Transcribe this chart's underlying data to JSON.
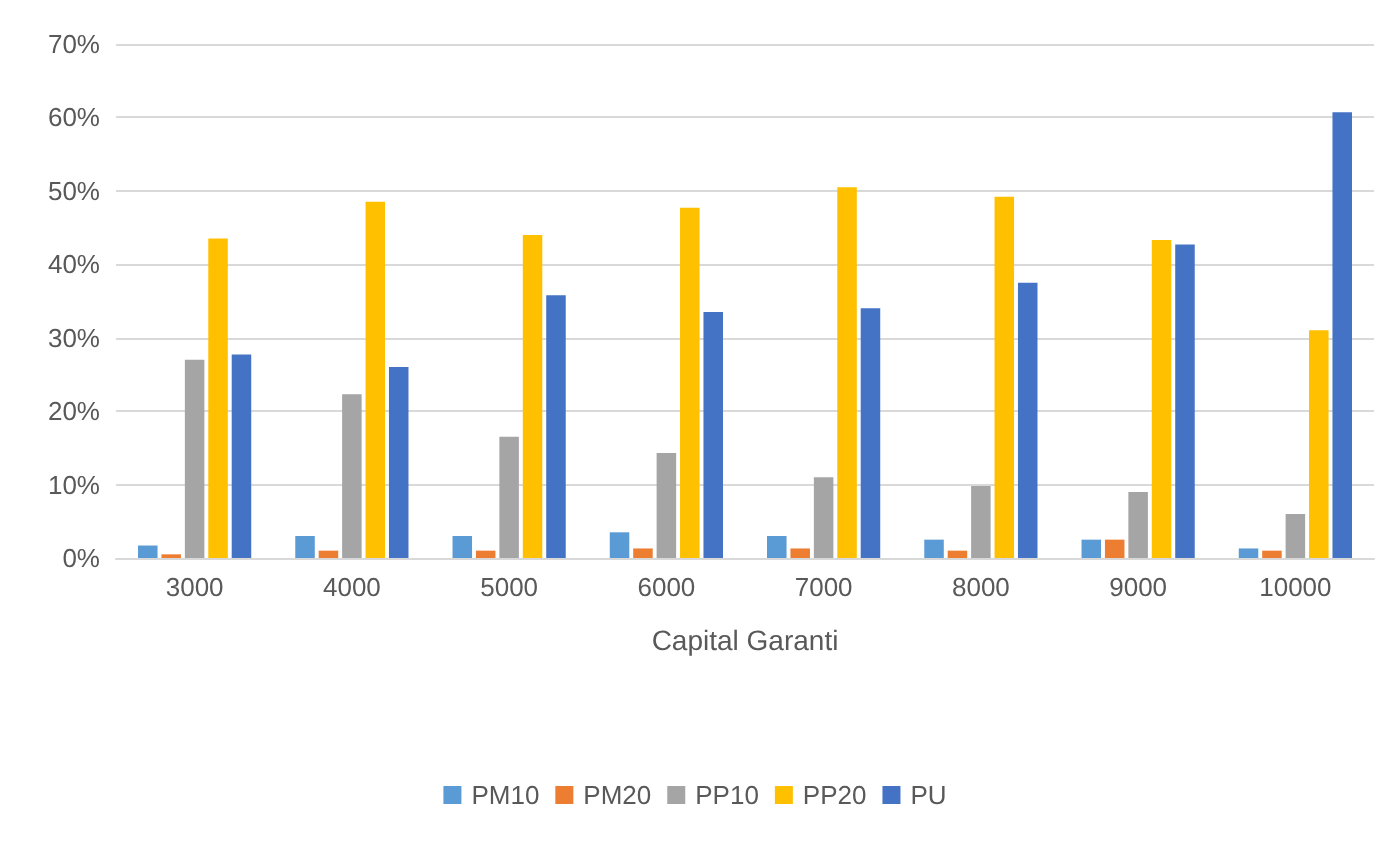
{
  "chart_data": {
    "type": "bar",
    "xlabel": "Capital Garanti",
    "categories": [
      "3000",
      "4000",
      "5000",
      "6000",
      "7000",
      "8000",
      "9000",
      "10000"
    ],
    "series": [
      {
        "name": "PM10",
        "color": "#5b9bd5",
        "values": [
          1.7,
          3,
          3,
          3.5,
          3,
          2.5,
          2.5,
          1.3
        ]
      },
      {
        "name": "PM20",
        "color": "#ed7d31",
        "values": [
          0.5,
          1,
          1,
          1.3,
          1.3,
          1,
          2.5,
          1
        ]
      },
      {
        "name": "PP10",
        "color": "#a5a5a5",
        "values": [
          27,
          22.3,
          16.5,
          14.3,
          11,
          9.8,
          9,
          6
        ]
      },
      {
        "name": "PP20",
        "color": "#ffc000",
        "values": [
          43.5,
          48.5,
          44,
          47.7,
          50.5,
          49.2,
          43.3,
          31
        ]
      },
      {
        "name": "PU",
        "color": "#4472c4",
        "values": [
          27.7,
          26,
          35.8,
          33.5,
          34,
          37.5,
          42.7,
          60.7
        ]
      }
    ],
    "ylim": [
      0,
      70
    ],
    "yticks": [
      {
        "value": 0,
        "label": "0%"
      },
      {
        "value": 10,
        "label": "10%"
      },
      {
        "value": 20,
        "label": "20%"
      },
      {
        "value": 30,
        "label": "30%"
      },
      {
        "value": 40,
        "label": "40%"
      },
      {
        "value": 50,
        "label": "50%"
      },
      {
        "value": 60,
        "label": "60%"
      },
      {
        "value": 70,
        "label": "70%"
      }
    ],
    "grid": "y",
    "legend": "bottom"
  }
}
